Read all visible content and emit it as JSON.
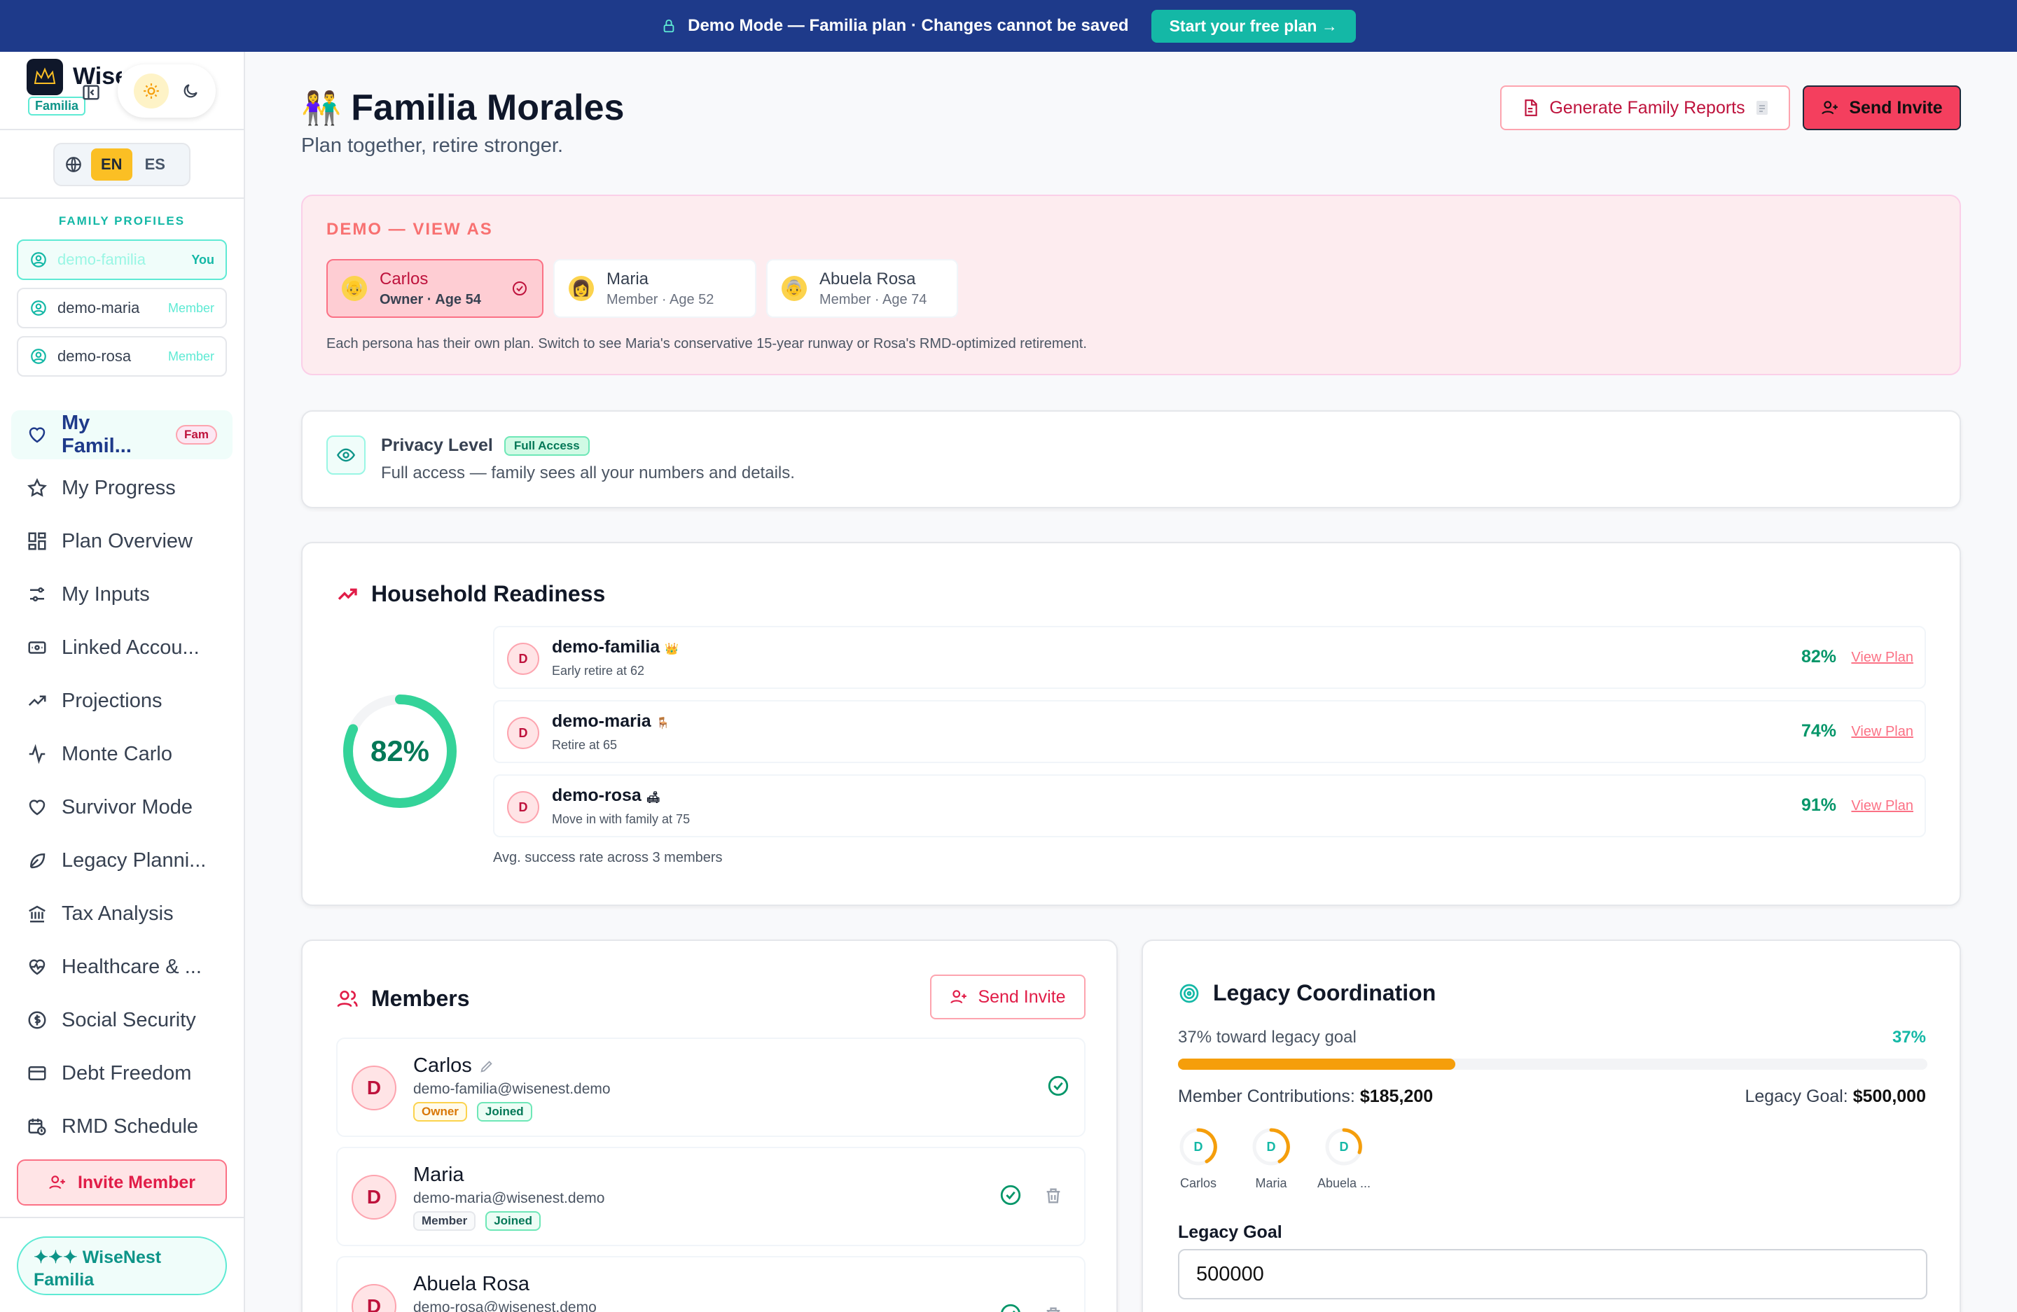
{
  "banner": {
    "text": "Demo Mode — Familia plan · Changes cannot be saved",
    "cta": "Start your free plan →",
    "icon": "lock-icon"
  },
  "sidebar": {
    "brand": "WiseNest",
    "plan_chip": "Familia",
    "lang": {
      "en": "EN",
      "es": "ES",
      "selected": "EN"
    },
    "profiles_title": "FAMILY PROFILES",
    "profiles": [
      {
        "id": "demo-familia",
        "tag": "You"
      },
      {
        "id": "demo-maria",
        "tag": "Member"
      },
      {
        "id": "demo-rosa",
        "tag": "Member"
      }
    ],
    "nav": [
      {
        "label": "My Famil...",
        "badge": "Fam",
        "icon": "heart-icon"
      },
      {
        "label": "My Progress",
        "icon": "star-icon"
      },
      {
        "label": "Plan Overview",
        "icon": "grid-icon"
      },
      {
        "label": "My Inputs",
        "icon": "sliders-icon"
      },
      {
        "label": "Linked Accou...",
        "icon": "bank-card-icon"
      },
      {
        "label": "Projections",
        "icon": "trend-up-icon"
      },
      {
        "label": "Monte Carlo",
        "icon": "pulse-icon"
      },
      {
        "label": "Survivor Mode",
        "icon": "heart-icon"
      },
      {
        "label": "Legacy Planni...",
        "icon": "leaf-icon"
      },
      {
        "label": "Tax Analysis",
        "icon": "landmark-icon"
      },
      {
        "label": "Healthcare & ...",
        "icon": "heart-pulse-icon"
      },
      {
        "label": "Social Security",
        "icon": "dollar-circle-icon"
      },
      {
        "label": "Debt Freedom",
        "icon": "credit-card-icon"
      },
      {
        "label": "RMD Schedule",
        "icon": "calendar-clock-icon"
      }
    ],
    "invite_button": "Invite Member",
    "footer_chip": "✦✦✦ WiseNest Familia"
  },
  "header": {
    "title": "Familia Morales",
    "subtitle": "Plan together, retire stronger.",
    "reports_button": "Generate Family Reports",
    "invite_button": "Send Invite"
  },
  "demo": {
    "title": "DEMO — VIEW AS",
    "personas": [
      {
        "name": "Carlos",
        "meta": "Owner · Age 54",
        "emoji": "👴"
      },
      {
        "name": "Maria",
        "meta": "Member · Age 52",
        "emoji": "👩"
      },
      {
        "name": "Abuela Rosa",
        "meta": "Member · Age 74",
        "emoji": "👵"
      }
    ],
    "note": "Each persona has their own plan. Switch to see Maria's conservative 15-year runway or Rosa's RMD-optimized retirement."
  },
  "privacy": {
    "title": "Privacy Level",
    "badge": "Full Access",
    "desc": "Full access — family sees all your numbers and details."
  },
  "readiness": {
    "title": "Household Readiness",
    "overall": "82%",
    "overall_value": 0.82,
    "members": [
      {
        "id": "demo-familia",
        "initial": "D",
        "emoji": "👑",
        "desc": "Early retire at 62",
        "pct": "82%"
      },
      {
        "id": "demo-maria",
        "initial": "D",
        "emoji": "🪑",
        "desc": "Retire at 65",
        "pct": "74%"
      },
      {
        "id": "demo-rosa",
        "initial": "D",
        "emoji": "🛋",
        "desc": "Move in with family at 75",
        "pct": "91%"
      }
    ],
    "view_link": "View Plan",
    "avg_note": "Avg. success rate across 3 members"
  },
  "members": {
    "title": "Members",
    "invite_button": "Send Invite",
    "list": [
      {
        "initial": "D",
        "name": "Carlos",
        "email": "demo-familia@wisenest.demo",
        "role": "Owner",
        "status": "Joined"
      },
      {
        "initial": "D",
        "name": "Maria",
        "email": "demo-maria@wisenest.demo",
        "role": "Member",
        "status": "Joined"
      },
      {
        "initial": "D",
        "name": "Abuela Rosa",
        "email": "demo-rosa@wisenest.demo"
      }
    ]
  },
  "legacy": {
    "title": "Legacy Coordination",
    "progress_label": "37% toward legacy goal",
    "progress_pct": "37%",
    "progress_value": 0.37,
    "contrib_label": "Member Contributions:",
    "contrib_value": "$185,200",
    "goal_label": "Legacy Goal:",
    "goal_value": "$500,000",
    "people": [
      {
        "initial": "D",
        "name": "Carlos"
      },
      {
        "initial": "D",
        "name": "Maria"
      },
      {
        "initial": "D",
        "name": "Abuela ..."
      }
    ],
    "goal_field_label": "Legacy Goal",
    "goal_field_value": "500000"
  },
  "colors": {
    "accent_teal": "#14b8a6",
    "brand_navy": "#1e3a8a",
    "rose": "#f43f5e",
    "amber": "#f59e0b"
  }
}
